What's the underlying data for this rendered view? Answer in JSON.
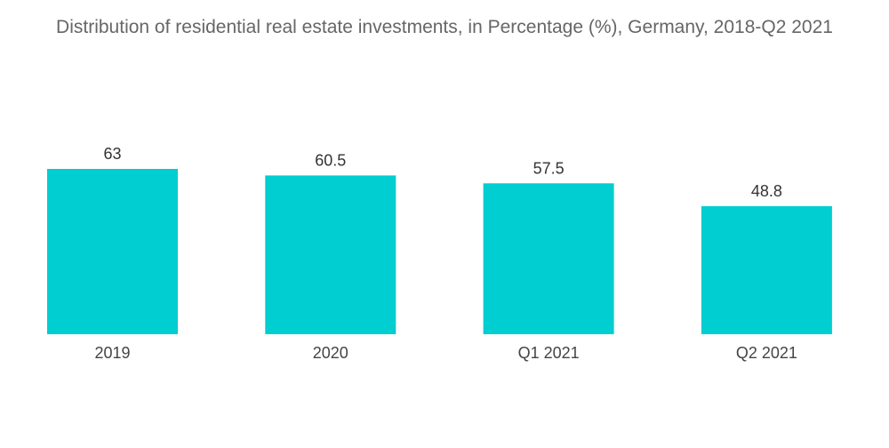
{
  "chart_data": {
    "type": "bar",
    "title": "Distribution of residential real estate investments, in Percentage (%), Germany, 2018-Q2 2021",
    "categories": [
      "2019",
      "2020",
      "Q1 2021",
      "Q2 2021"
    ],
    "values": [
      63,
      60.5,
      57.5,
      48.8
    ],
    "value_labels": [
      "63",
      "60.5",
      "57.5",
      "48.8"
    ],
    "xlabel": "",
    "ylabel": "",
    "ylim": [
      0,
      70
    ],
    "grid": false,
    "legend": "none",
    "bar_color": "#00CED1"
  }
}
